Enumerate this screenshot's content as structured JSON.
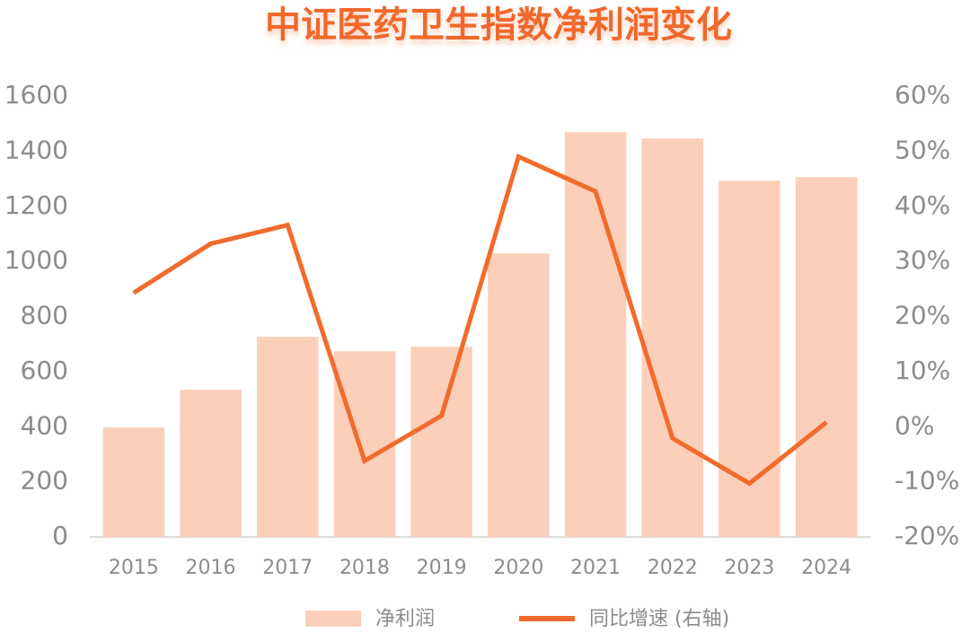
{
  "chart_data": {
    "type": "bar-line",
    "title": "中证医药卫生指数净利润变化",
    "categories": [
      "2015",
      "2016",
      "2017",
      "2018",
      "2019",
      "2020",
      "2021",
      "2022",
      "2023",
      "2024"
    ],
    "series": [
      {
        "name": "净利润",
        "type": "bar",
        "color": "#fbcfb9",
        "values": [
          397,
          534,
          726,
          674,
          690,
          1029,
          1469,
          1446,
          1293,
          1306
        ]
      },
      {
        "name": "同比增速 (右轴)",
        "type": "line",
        "axis": "y2",
        "color": "#f26b2c",
        "values": [
          24.3,
          33.2,
          36.6,
          -6.2,
          2.0,
          49.0,
          42.7,
          -2.1,
          -10.3,
          0.8
        ]
      }
    ],
    "ylim": [
      0,
      1600
    ],
    "yticks": [
      0,
      200,
      400,
      600,
      800,
      1000,
      1200,
      1400,
      1600
    ],
    "y2lim": [
      -20,
      60
    ],
    "y2ticks": [
      {
        "value": -20,
        "label": "-20%"
      },
      {
        "value": -10,
        "label": "-10%"
      },
      {
        "value": 0,
        "label": "0%"
      },
      {
        "value": 10,
        "label": "10%"
      },
      {
        "value": 20,
        "label": "20%"
      },
      {
        "value": 30,
        "label": "30%"
      },
      {
        "value": 40,
        "label": "40%"
      },
      {
        "value": 50,
        "label": "50%"
      },
      {
        "value": 60,
        "label": "60%"
      }
    ],
    "grid": false
  }
}
